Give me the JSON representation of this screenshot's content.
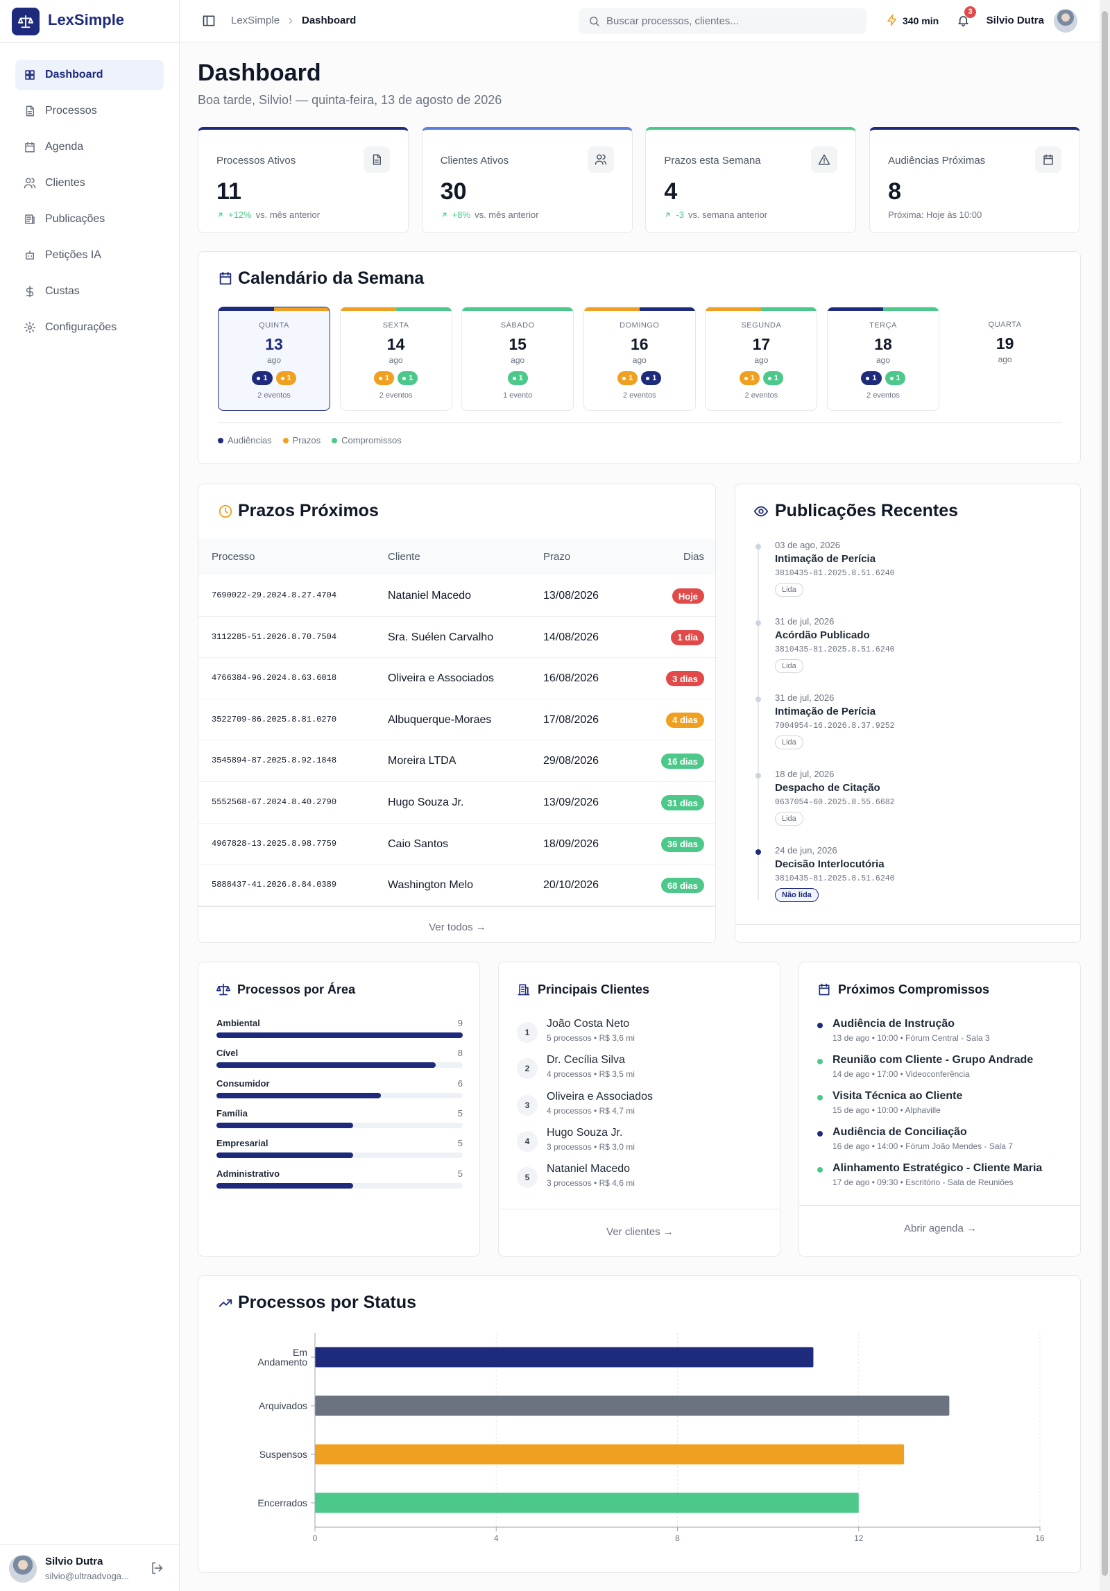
{
  "sidebar": {
    "brand": "LexSimple",
    "nav": [
      "Dashboard",
      "Processos",
      "Agenda",
      "Clientes",
      "Publicações",
      "Petições IA",
      "Custas",
      "Configurações"
    ],
    "user": {
      "name": "Silvio Dutra",
      "email": "silvio@ultraadvoga..."
    }
  },
  "header": {
    "breadcrumb": [
      "LexSimple",
      "Dashboard"
    ],
    "search": "Buscar processos, clientes...",
    "timer": "340 min",
    "notifications": 3,
    "user": "Silvio Dutra"
  },
  "page": {
    "title": "Dashboard",
    "subtitle": "Boa tarde, Silvio! — quinta-feira, 13 de agosto de 2026"
  },
  "stats": [
    {
      "label": "Processos Ativos",
      "value": 11,
      "change": "+12%",
      "note": "vs. mês anterior",
      "color": "#1e2b7c"
    },
    {
      "label": "Clientes Ativos",
      "value": 30,
      "change": "+8%",
      "note": "vs. mês anterior",
      "color": "#5b7fe0"
    },
    {
      "label": "Prazos esta Semana",
      "value": 4,
      "change": "-3",
      "note": "vs. semana anterior",
      "color": "#4cc98a"
    },
    {
      "label": "Audiências Próximas",
      "value": 8,
      "note": "Próxima: Hoje às 10:00",
      "color": "#1e2b7c"
    }
  ],
  "calendar": {
    "title": "Calendário da Semana",
    "legend": [
      {
        "name": "Audiências",
        "color": "#1e2b7c"
      },
      {
        "name": "Prazos",
        "color": "#f0a020"
      },
      {
        "name": "Compromissos",
        "color": "#4cc98a"
      }
    ],
    "days": [
      {
        "weekday": "QUINTA",
        "day": 13,
        "month": "ago",
        "selected": true,
        "events": [
          {
            "count": 1,
            "color": "#1e2b7c"
          },
          {
            "count": 1,
            "color": "#f0a020"
          }
        ],
        "summary": "2 eventos"
      },
      {
        "weekday": "SEXTA",
        "day": 14,
        "month": "ago",
        "events": [
          {
            "count": 1,
            "color": "#f0a020"
          },
          {
            "count": 1,
            "color": "#4cc98a"
          }
        ],
        "summary": "2 eventos"
      },
      {
        "weekday": "SÁBADO",
        "day": 15,
        "month": "ago",
        "events": [
          {
            "count": 1,
            "color": "#4cc98a"
          }
        ],
        "summary": "1 evento"
      },
      {
        "weekday": "DOMINGO",
        "day": 16,
        "month": "ago",
        "events": [
          {
            "count": 1,
            "color": "#f0a020"
          },
          {
            "count": 1,
            "color": "#1e2b7c"
          }
        ],
        "summary": "2 eventos"
      },
      {
        "weekday": "SEGUNDA",
        "day": 17,
        "month": "ago",
        "events": [
          {
            "count": 1,
            "color": "#f0a020"
          },
          {
            "count": 1,
            "color": "#4cc98a"
          }
        ],
        "summary": "2 eventos"
      },
      {
        "weekday": "TERÇA",
        "day": 18,
        "month": "ago",
        "events": [
          {
            "count": 1,
            "color": "#1e2b7c"
          },
          {
            "count": 1,
            "color": "#4cc98a"
          }
        ],
        "summary": "2 eventos"
      },
      {
        "weekday": "QUARTA",
        "day": 19,
        "month": "ago",
        "events": []
      }
    ]
  },
  "deadlines": {
    "title": "Prazos Próximos",
    "columns": [
      "Processo",
      "Cliente",
      "Prazo",
      "Dias"
    ],
    "rows": [
      {
        "process": "7690022-29.2024.8.27.4704",
        "client": "Nataniel Macedo",
        "due": "13/08/2026",
        "days": "Hoje",
        "color": "#e24a4a"
      },
      {
        "process": "3112285-51.2026.8.70.7504",
        "client": "Sra. Suélen Carvalho",
        "due": "14/08/2026",
        "days": "1 dia",
        "color": "#e24a4a"
      },
      {
        "process": "4766384-96.2024.8.63.6018",
        "client": "Oliveira e Associados",
        "due": "16/08/2026",
        "days": "3 dias",
        "color": "#e24a4a"
      },
      {
        "process": "3522709-86.2025.8.81.0270",
        "client": "Albuquerque-Moraes",
        "due": "17/08/2026",
        "days": "4 dias",
        "color": "#f0a020"
      },
      {
        "process": "3545894-87.2025.8.92.1848",
        "client": "Moreira LTDA",
        "due": "29/08/2026",
        "days": "16 dias",
        "color": "#4cc98a"
      },
      {
        "process": "5552568-67.2024.8.40.2790",
        "client": "Hugo Souza Jr.",
        "due": "13/09/2026",
        "days": "31 dias",
        "color": "#4cc98a"
      },
      {
        "process": "4967828-13.2025.8.98.7759",
        "client": "Caio Santos",
        "due": "18/09/2026",
        "days": "36 dias",
        "color": "#4cc98a"
      },
      {
        "process": "5888437-41.2026.8.84.0389",
        "client": "Washington Melo",
        "due": "20/10/2026",
        "days": "68 dias",
        "color": "#4cc98a"
      }
    ],
    "footer": "Ver todos →"
  },
  "publications": {
    "title": "Publicações Recentes",
    "items": [
      {
        "date": "03 de ago, 2026",
        "title": "Intimação de Perícia",
        "number": "3810435-81.2025.8.51.6240",
        "status": "Lida"
      },
      {
        "date": "31 de jul, 2026",
        "title": "Acórdão Publicado",
        "number": "3810435-81.2025.8.51.6240",
        "status": "Lida"
      },
      {
        "date": "31 de jul, 2026",
        "title": "Intimação de Perícia",
        "number": "7004954-16.2026.8.37.9252",
        "status": "Lida"
      },
      {
        "date": "18 de jul, 2026",
        "title": "Despacho de Citação",
        "number": "0637054-60.2025.8.55.6682",
        "status": "Lida"
      },
      {
        "date": "24 de jun, 2026",
        "title": "Decisão Interlocutória",
        "number": "3810435-81.2025.8.51.6240",
        "status": "Não lida",
        "unread": true
      }
    ]
  },
  "areas": {
    "title": "Processos por Área",
    "color": "#1e2b7c",
    "items": [
      {
        "name": "Ambiental",
        "value": 9
      },
      {
        "name": "Cível",
        "value": 8
      },
      {
        "name": "Consumidor",
        "value": 6
      },
      {
        "name": "Família",
        "value": 5
      },
      {
        "name": "Empresarial",
        "value": 5
      },
      {
        "name": "Administrativo",
        "value": 5
      }
    ]
  },
  "clients": {
    "title": "Principais Clientes",
    "items": [
      {
        "rank": 1,
        "name": "João Costa Neto",
        "details": "5 processos • R$ 3,6 mi"
      },
      {
        "rank": 2,
        "name": "Dr. Cecília Silva",
        "details": "4 processos • R$ 3,5 mi"
      },
      {
        "rank": 3,
        "name": "Oliveira e Associados",
        "details": "4 processos • R$ 4,7 mi"
      },
      {
        "rank": 4,
        "name": "Hugo Souza Jr.",
        "details": "3 processos • R$ 3,0 mi"
      },
      {
        "rank": 5,
        "name": "Nataniel Macedo",
        "details": "3 processos • R$ 4,6 mi"
      }
    ],
    "footer": "Ver clientes →"
  },
  "appointments": {
    "title": "Próximos Compromissos",
    "items": [
      {
        "title": "Audiência de Instrução",
        "details": "13 de ago • 10:00 • Fórum Central - Sala 3",
        "color": "#1e2b7c"
      },
      {
        "title": "Reunião com Cliente - Grupo Andrade",
        "details": "14 de ago • 17:00 • Videoconferência",
        "color": "#4cc98a"
      },
      {
        "title": "Visita Técnica ao Cliente",
        "details": "15 de ago • 10:00 • Alphaville",
        "color": "#4cc98a"
      },
      {
        "title": "Audiência de Conciliação",
        "details": "16 de ago • 14:00 • Fórum João Mendes - Sala 7",
        "color": "#1e2b7c"
      },
      {
        "title": "Alinhamento Estratégico - Cliente Maria",
        "details": "17 de ago • 09:30 • Escritório - Sala de Reuniões",
        "color": "#4cc98a"
      }
    ],
    "footer": "Abrir agenda →"
  },
  "chart_data": {
    "type": "bar",
    "orientation": "horizontal",
    "title": "Processos por Status",
    "categories": [
      "Em Andamento",
      "Arquivados",
      "Suspensos",
      "Encerrados"
    ],
    "values": [
      11,
      14,
      13,
      12
    ],
    "colors": [
      "#1e2b7c",
      "#6b7280",
      "#f0a020",
      "#4cc98a"
    ],
    "xlim": [
      0,
      16
    ],
    "xticks": [
      0,
      4,
      8,
      12,
      16
    ],
    "grid": true
  }
}
